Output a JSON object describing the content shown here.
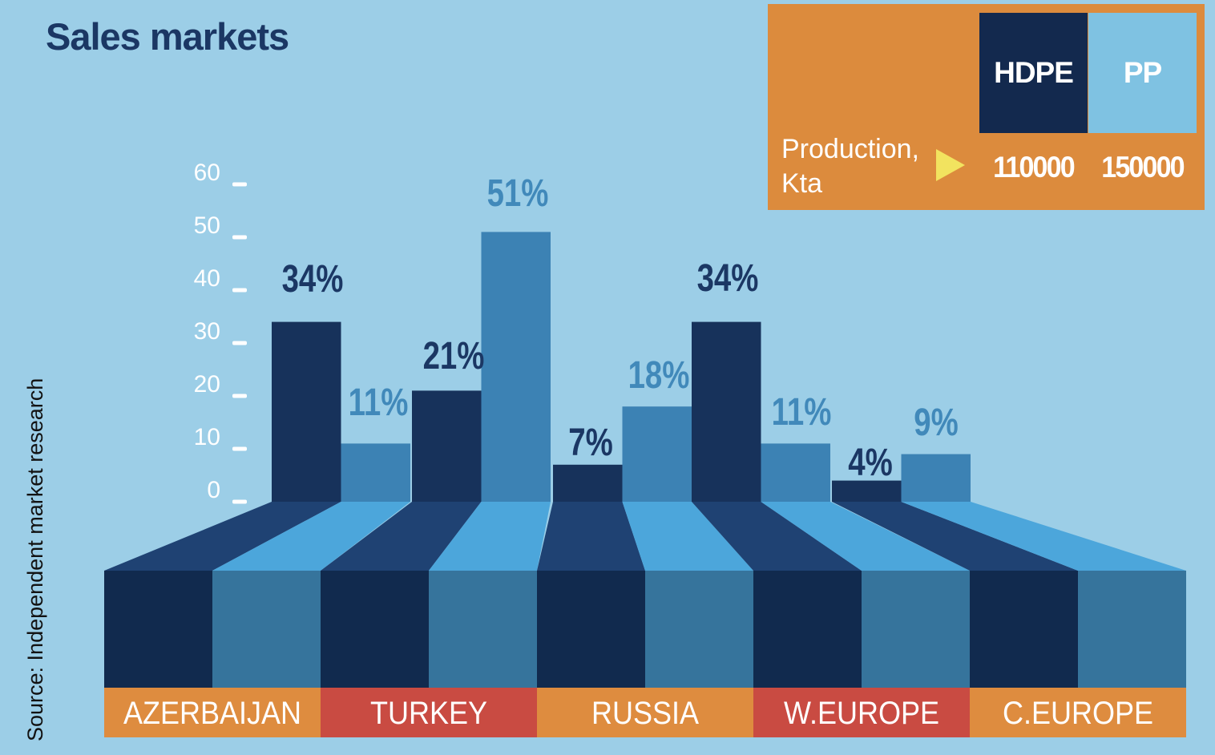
{
  "page": {
    "background_color": "#9CCEE7"
  },
  "title": "Sales markets",
  "source_note": "Source: Independent market research",
  "legend": {
    "box_color": "#DC8B3D",
    "arrow_color": "#F2E35F",
    "production_label_line1": "Production,",
    "production_label_line2": "Kta",
    "series": [
      {
        "name": "HDPE",
        "production_kta": "110000",
        "swatch_color": "#13294E"
      },
      {
        "name": "PP",
        "production_kta": "150000",
        "swatch_color": "#7FC2E2"
      }
    ]
  },
  "chart_data": {
    "type": "bar",
    "style": "3d-perspective-infographic",
    "title": "Sales markets",
    "value_unit": "%",
    "grid": false,
    "legend_position": "top-right",
    "categories": [
      "AZERBAIJAN",
      "TURKEY",
      "RUSSIA",
      "W.EUROPE",
      "C.EUROPE"
    ],
    "series": [
      {
        "name": "HDPE",
        "values": [
          34,
          21,
          7,
          34,
          4
        ],
        "bar_color": "#17325B",
        "slope_color": "#1F4273",
        "front_color": "#112A4E",
        "label_color": "#1B3764"
      },
      {
        "name": "PP",
        "values": [
          11,
          51,
          18,
          11,
          9
        ],
        "bar_color": "#3C82B4",
        "slope_color": "#4CA6DB",
        "front_color": "#36749C",
        "label_color": "#4189BA"
      }
    ],
    "value_labels": {
      "HDPE": [
        "34%",
        "21%",
        "7%",
        "34%",
        "4%"
      ],
      "PP": [
        "11%",
        "51%",
        "18%",
        "11%",
        "9%"
      ]
    },
    "y_axis": {
      "ticks": [
        0,
        10,
        20,
        30,
        40,
        50,
        60
      ],
      "min": 0,
      "max": 60,
      "tick_color": "#FFFFFF"
    },
    "category_band_colors": [
      "#DE8C3F",
      "#C94B42",
      "#DE8C3F",
      "#C94B42",
      "#DE8C3F"
    ],
    "category_label_color": "#FFFFFF"
  }
}
